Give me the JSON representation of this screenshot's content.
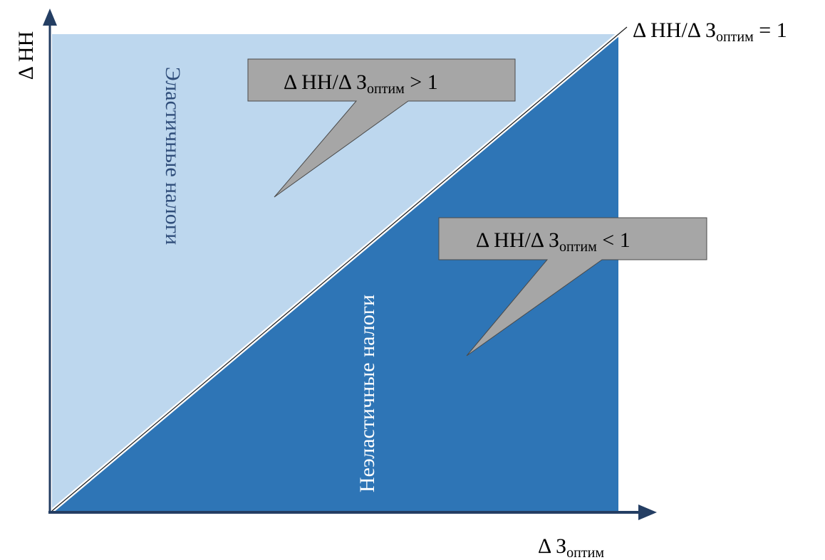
{
  "axes": {
    "y_label": "Δ НН",
    "x_label_main": "Δ З",
    "x_label_sub": "оптим"
  },
  "line_label": {
    "main": "Δ НН/Δ З",
    "sub": "оптим",
    "tail": " = 1"
  },
  "regions": {
    "upper_label": "Эластичные налоги",
    "lower_label": "Неэластичные налоги"
  },
  "callouts": {
    "upper": {
      "main": "Δ НН/Δ З",
      "sub": "оптим",
      "tail": " > 1"
    },
    "lower": {
      "main": "Δ НН/Δ З",
      "sub": "оптим",
      "tail": " < 1"
    }
  },
  "colors": {
    "upper_fill": "#bdd7ee",
    "lower_fill": "#2e75b6",
    "axis": "#243e63",
    "callout_fill": "#a6a6a6",
    "region_text_upper": "#2f4d7a",
    "region_text_lower": "#ffffff"
  }
}
